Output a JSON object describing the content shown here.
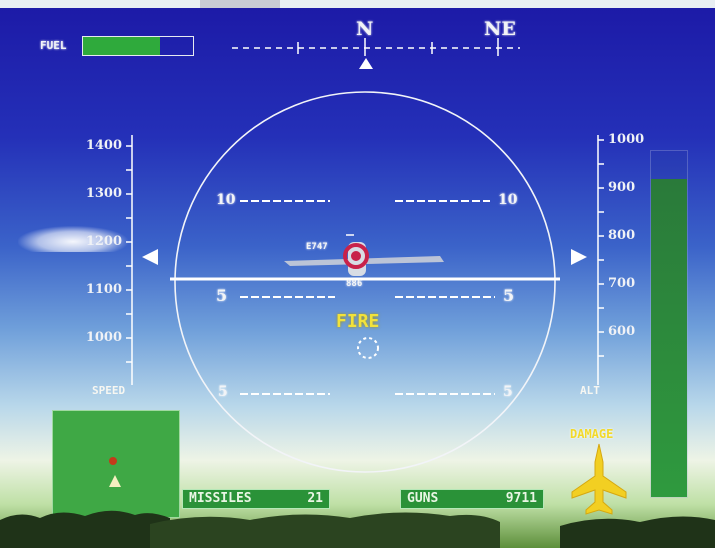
{
  "fuel": {
    "label": "FUEL",
    "level": 0.7
  },
  "compass": {
    "north": "N",
    "northeast": "NE"
  },
  "speed_scale": {
    "ticks": [
      "1400",
      "1300",
      "1200",
      "1100",
      "1000"
    ],
    "caption": "SPEED"
  },
  "altitude_scale": {
    "ticks": [
      "1000",
      "900",
      "800",
      "700",
      "600"
    ],
    "caption": "ALT"
  },
  "pitch_ladder": {
    "upper_left": "10",
    "upper_right": "10",
    "mid_left": "5",
    "mid_right": "5",
    "lower_left": "5",
    "lower_right": "5"
  },
  "target": {
    "id": "E747",
    "range": "886"
  },
  "fire_label": "FIRE",
  "weapons": {
    "missiles": {
      "label": "MISSILES",
      "count": "21"
    },
    "guns": {
      "label": "GUNS",
      "count": "9711"
    }
  },
  "damage": {
    "label": "DAMAGE"
  },
  "throttle": {
    "level": 0.92
  },
  "colors": {
    "hud_green": "#2a9238",
    "fire_yellow": "#f2e23a",
    "target_red": "#c8224a",
    "sky_top": "#1c19a6"
  }
}
